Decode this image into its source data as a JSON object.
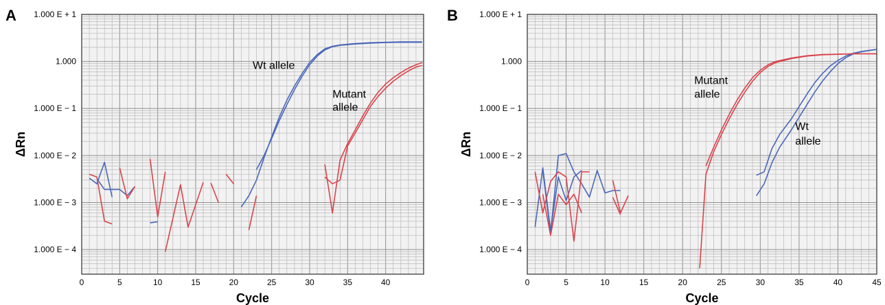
{
  "colors": {
    "wt": "#4a67b8",
    "mutant": "#d9434b",
    "plot_bg": "#f2f2f2",
    "grid_minor": "#b8b8b8",
    "grid_major": "#8f8f8f",
    "frame": "#555555"
  },
  "chart_data": [
    {
      "panel": "A",
      "type": "line",
      "xlabel": "Cycle",
      "ylabel": "ΔRn",
      "y_scale": "log",
      "xlim": [
        0,
        45
      ],
      "ylim": [
        3e-05,
        10
      ],
      "x_ticks": [
        0,
        5,
        10,
        15,
        20,
        25,
        30,
        35,
        40
      ],
      "x_tick_labels": [
        "0",
        "5",
        "10",
        "15",
        "20",
        "25",
        "30",
        "35",
        "40"
      ],
      "y_ticks": [
        0.0001,
        0.001,
        0.01,
        0.1,
        1,
        10
      ],
      "y_tick_labels": [
        "1.000 E − 4",
        "1.000 E − 3",
        "1.000 E − 2",
        "1.000 E − 1",
        "1.000",
        "1.000 E + 1"
      ],
      "grid": true,
      "annotations": [
        {
          "text": "Wt allele",
          "x": 22.5,
          "y": 0.7
        },
        {
          "text": "Mutant",
          "x": 33,
          "y": 0.17
        },
        {
          "text": "allele",
          "x": 33,
          "y": 0.09
        }
      ],
      "series": [
        {
          "group": "wt",
          "points": [
            [
              1,
              0.0033
            ],
            [
              2,
              0.0025
            ],
            [
              3,
              0.0072
            ],
            [
              4,
              0.0013
            ]
          ]
        },
        {
          "group": "wt",
          "points": [
            [
              2,
              0.0032
            ],
            [
              3,
              0.0019
            ],
            [
              5,
              0.0019
            ],
            [
              6,
              0.0014
            ],
            [
              7,
              0.0022
            ]
          ]
        },
        {
          "group": "wt",
          "points": [
            [
              9,
              0.00037
            ],
            [
              10,
              0.00039
            ]
          ]
        },
        {
          "group": "wt",
          "points": [
            [
              21,
              0.0008
            ],
            [
              22,
              0.0014
            ],
            [
              23,
              0.003
            ],
            [
              24,
              0.009
            ],
            [
              25,
              0.025
            ],
            [
              26,
              0.065
            ],
            [
              27,
              0.15
            ],
            [
              28,
              0.3
            ],
            [
              29,
              0.55
            ],
            [
              30,
              0.95
            ],
            [
              31,
              1.4
            ],
            [
              32,
              1.85
            ],
            [
              33,
              2.1
            ],
            [
              34,
              2.25
            ],
            [
              36,
              2.4
            ],
            [
              38,
              2.5
            ],
            [
              40,
              2.55
            ],
            [
              42,
              2.6
            ],
            [
              44.8,
              2.6
            ]
          ]
        },
        {
          "group": "wt",
          "points": [
            [
              23,
              0.005
            ],
            [
              24,
              0.01
            ],
            [
              25,
              0.023
            ],
            [
              26,
              0.055
            ],
            [
              27,
              0.12
            ],
            [
              28,
              0.25
            ],
            [
              29,
              0.48
            ],
            [
              30,
              0.85
            ],
            [
              31,
              1.3
            ],
            [
              32,
              1.75
            ],
            [
              33,
              2.05
            ],
            [
              34,
              2.2
            ],
            [
              36,
              2.35
            ],
            [
              38,
              2.45
            ],
            [
              40,
              2.52
            ],
            [
              42,
              2.55
            ],
            [
              44.8,
              2.55
            ]
          ]
        },
        {
          "group": "mutant",
          "points": [
            [
              1,
              0.004
            ],
            [
              2,
              0.0035
            ],
            [
              3,
              0.0004
            ],
            [
              4,
              0.00035
            ]
          ]
        },
        {
          "group": "mutant",
          "points": [
            [
              5,
              0.0055
            ],
            [
              6,
              0.0012
            ],
            [
              7,
              0.0022
            ]
          ]
        },
        {
          "group": "mutant",
          "points": [
            [
              9,
              0.0085
            ],
            [
              10,
              0.0005
            ],
            [
              11,
              0.0045
            ]
          ]
        },
        {
          "group": "mutant",
          "points": [
            [
              11,
              9e-05
            ],
            [
              13,
              0.0024
            ],
            [
              14,
              0.0003
            ],
            [
              16,
              0.0027
            ]
          ]
        },
        {
          "group": "mutant",
          "points": [
            [
              17,
              0.0026
            ],
            [
              18,
              0.001
            ]
          ]
        },
        {
          "group": "mutant",
          "points": [
            [
              19,
              0.004
            ],
            [
              20,
              0.0025
            ]
          ]
        },
        {
          "group": "mutant",
          "points": [
            [
              22,
              0.00026
            ],
            [
              23,
              0.0014
            ]
          ]
        },
        {
          "group": "mutant",
          "points": [
            [
              32,
              0.0065
            ],
            [
              33,
              0.0006
            ],
            [
              34,
              0.008
            ],
            [
              35,
              0.018
            ],
            [
              36,
              0.035
            ],
            [
              37,
              0.07
            ],
            [
              38,
              0.13
            ],
            [
              39,
              0.22
            ],
            [
              40,
              0.33
            ],
            [
              41,
              0.45
            ],
            [
              42,
              0.58
            ],
            [
              43,
              0.72
            ],
            [
              44,
              0.85
            ],
            [
              44.8,
              0.95
            ]
          ]
        },
        {
          "group": "mutant",
          "points": [
            [
              32,
              0.0035
            ],
            [
              33,
              0.0025
            ],
            [
              34,
              0.003
            ],
            [
              35,
              0.016
            ],
            [
              36,
              0.03
            ],
            [
              37,
              0.058
            ],
            [
              38,
              0.11
            ],
            [
              39,
              0.18
            ],
            [
              40,
              0.27
            ],
            [
              41,
              0.38
            ],
            [
              42,
              0.5
            ],
            [
              43,
              0.63
            ],
            [
              44,
              0.76
            ],
            [
              44.8,
              0.82
            ]
          ]
        }
      ]
    },
    {
      "panel": "B",
      "type": "line",
      "xlabel": "Cycle",
      "ylabel": "ΔRn",
      "y_scale": "log",
      "xlim": [
        0,
        45
      ],
      "ylim": [
        3e-05,
        10
      ],
      "x_ticks": [
        0,
        5,
        10,
        15,
        20,
        25,
        30,
        35,
        40,
        45
      ],
      "x_tick_labels": [
        "0",
        "5",
        "10",
        "15",
        "20",
        "25",
        "30",
        "35",
        "40",
        "45"
      ],
      "y_ticks": [
        0.0001,
        0.001,
        0.01,
        0.1,
        1,
        10
      ],
      "y_tick_labels": [
        "1.000 E − 4",
        "1.000 E − 3",
        "1.000 E − 2",
        "1.000 E − 1",
        "1.000",
        "1.000 E + 1"
      ],
      "grid": true,
      "annotations": [
        {
          "text": "Mutant",
          "x": 21.5,
          "y": 0.33
        },
        {
          "text": "allele",
          "x": 21.5,
          "y": 0.17
        },
        {
          "text": "Wt",
          "x": 34.5,
          "y": 0.035
        },
        {
          "text": "allele",
          "x": 34.5,
          "y": 0.017
        }
      ],
      "series": [
        {
          "group": "wt",
          "points": [
            [
              1,
              0.0003
            ],
            [
              2,
              0.0055
            ],
            [
              3,
              0.00025
            ],
            [
              4,
              0.0035
            ],
            [
              5,
              0.0011
            ],
            [
              6,
              0.0035
            ],
            [
              7,
              0.0048
            ]
          ]
        },
        {
          "group": "wt",
          "points": [
            [
              2,
              0.0048
            ],
            [
              3,
              0.00022
            ],
            [
              4,
              0.01
            ],
            [
              5,
              0.011
            ],
            [
              6,
              0.0045
            ],
            [
              7,
              0.0025
            ],
            [
              8,
              0.0013
            ],
            [
              9,
              0.0048
            ],
            [
              10,
              0.0016
            ],
            [
              11,
              0.0018
            ],
            [
              12,
              0.0018
            ]
          ]
        },
        {
          "group": "wt",
          "points": [
            [
              29.5,
              0.0014
            ],
            [
              30.5,
              0.0025
            ],
            [
              31.5,
              0.007
            ],
            [
              32.5,
              0.015
            ],
            [
              34,
              0.035
            ],
            [
              35,
              0.065
            ],
            [
              36,
              0.12
            ],
            [
              37,
              0.22
            ],
            [
              38,
              0.38
            ],
            [
              39,
              0.6
            ],
            [
              40,
              0.9
            ],
            [
              41,
              1.2
            ],
            [
              42,
              1.45
            ],
            [
              43,
              1.6
            ],
            [
              44,
              1.7
            ],
            [
              45,
              1.8
            ]
          ]
        },
        {
          "group": "wt",
          "points": [
            [
              29.5,
              0.0038
            ],
            [
              30.5,
              0.0045
            ],
            [
              31.5,
              0.014
            ],
            [
              32.5,
              0.028
            ],
            [
              34,
              0.06
            ],
            [
              35,
              0.11
            ],
            [
              36,
              0.2
            ],
            [
              37,
              0.35
            ],
            [
              38,
              0.55
            ],
            [
              39,
              0.8
            ],
            [
              40,
              1.05
            ],
            [
              41,
              1.3
            ],
            [
              42,
              1.5
            ],
            [
              43,
              1.62
            ],
            [
              44,
              1.72
            ],
            [
              45,
              1.8
            ]
          ]
        },
        {
          "group": "mutant",
          "points": [
            [
              1,
              0.0045
            ],
            [
              2,
              0.0006
            ],
            [
              3,
              0.0028
            ],
            [
              4,
              0.0045
            ],
            [
              5,
              0.0035
            ],
            [
              6,
              0.00015
            ],
            [
              7,
              0.0045
            ],
            [
              8,
              0.0045
            ]
          ]
        },
        {
          "group": "mutant",
          "points": [
            [
              2,
              0.0015
            ],
            [
              3,
              0.0002
            ],
            [
              4,
              0.0015
            ],
            [
              5,
              0.0009
            ],
            [
              6,
              0.0015
            ],
            [
              7,
              0.0006
            ]
          ]
        },
        {
          "group": "mutant",
          "points": [
            [
              11,
              0.003
            ],
            [
              12,
              0.0006
            ],
            [
              13,
              0.0014
            ]
          ]
        },
        {
          "group": "mutant",
          "points": [
            [
              11,
              0.0013
            ],
            [
              12,
              0.00055
            ]
          ]
        },
        {
          "group": "mutant",
          "points": [
            [
              22.2,
              4e-05
            ],
            [
              23,
              0.004
            ],
            [
              24,
              0.012
            ],
            [
              25,
              0.028
            ],
            [
              26,
              0.06
            ],
            [
              27,
              0.12
            ],
            [
              28,
              0.22
            ],
            [
              29,
              0.38
            ],
            [
              30,
              0.58
            ],
            [
              31,
              0.78
            ],
            [
              32,
              0.95
            ],
            [
              34,
              1.15
            ],
            [
              36,
              1.3
            ],
            [
              38,
              1.38
            ],
            [
              40,
              1.42
            ],
            [
              42,
              1.45
            ],
            [
              45,
              1.45
            ]
          ]
        },
        {
          "group": "mutant",
          "points": [
            [
              23,
              0.006
            ],
            [
              24,
              0.015
            ],
            [
              25,
              0.035
            ],
            [
              26,
              0.075
            ],
            [
              27,
              0.15
            ],
            [
              28,
              0.27
            ],
            [
              29,
              0.45
            ],
            [
              30,
              0.65
            ],
            [
              31,
              0.85
            ],
            [
              32,
              1.0
            ],
            [
              34,
              1.18
            ],
            [
              36,
              1.32
            ],
            [
              38,
              1.4
            ],
            [
              40,
              1.43
            ],
            [
              42,
              1.45
            ],
            [
              45,
              1.45
            ]
          ]
        }
      ]
    }
  ]
}
